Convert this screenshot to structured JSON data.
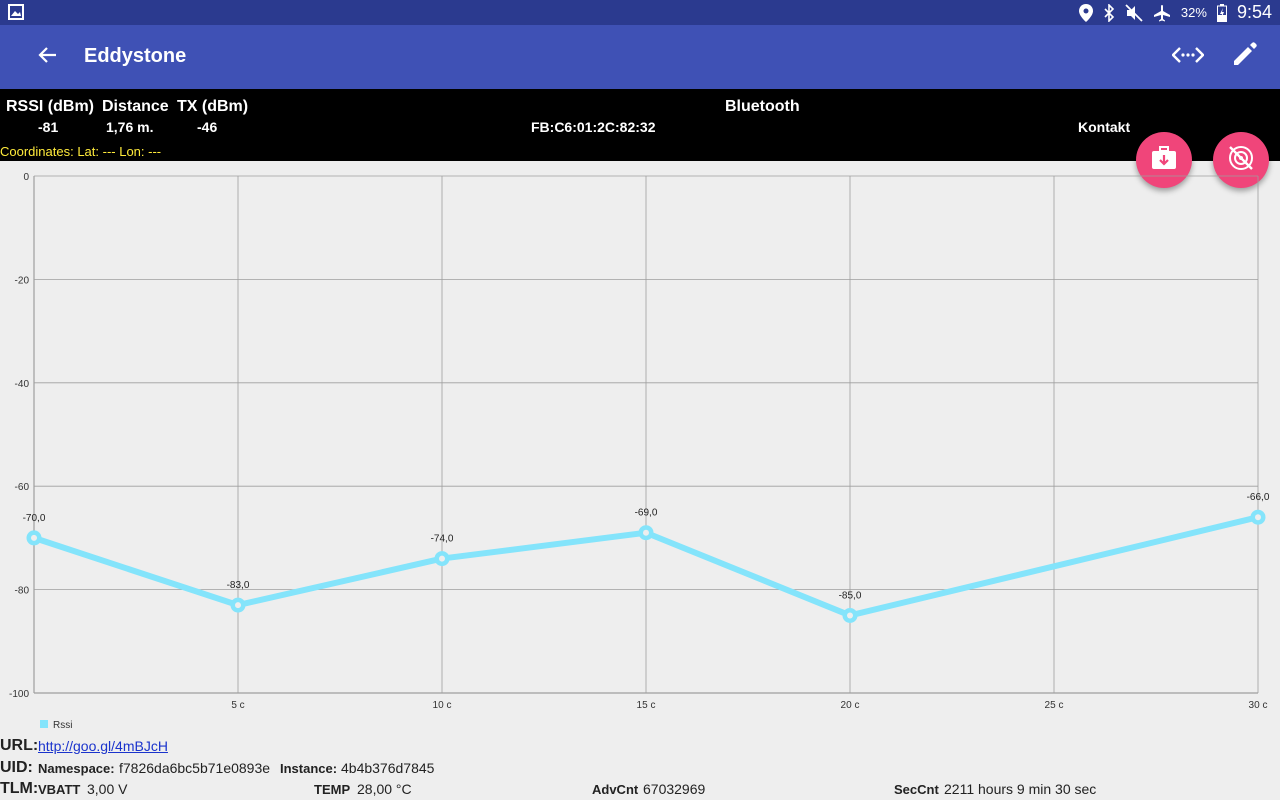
{
  "status_bar": {
    "battery": "32%",
    "time": "9:54",
    "icons": [
      "image-icon",
      "location-icon",
      "bluetooth-icon",
      "mute-icon",
      "airplane-icon",
      "battery-charging-icon"
    ]
  },
  "app_bar": {
    "title": "Eddystone",
    "icons": [
      "back-arrow-icon",
      "code-icon",
      "edit-pencil-icon"
    ]
  },
  "info": {
    "rssi_label": "RSSI (dBm)",
    "rssi_value": "-81",
    "distance_label": "Distance",
    "distance_value": "1,76 m.",
    "tx_label": "TX (dBm)",
    "tx_value": "-46",
    "bluetooth_label": "Bluetooth",
    "mac": "FB:C6:01:2C:82:32",
    "vendor": "Kontakt",
    "coordinates": "Coordinates: Lat: --- Lon: ---"
  },
  "fabs": {
    "save_icon": "briefcase-download-icon",
    "track_icon": "tracking-off-icon",
    "color": "#f0457a"
  },
  "chart_data": {
    "type": "line",
    "x": [
      0,
      5,
      10,
      15,
      20,
      30
    ],
    "x_tick_labels": [
      "5 c",
      "10 c",
      "15 c",
      "20 c",
      "25 c",
      "30 c"
    ],
    "x_ticks": [
      5,
      10,
      15,
      20,
      25,
      30
    ],
    "y_tick_labels": [
      "0",
      "-20",
      "-40",
      "-60",
      "-80",
      "-100"
    ],
    "y_ticks": [
      0,
      -20,
      -40,
      -60,
      -80,
      -100
    ],
    "xlim": [
      0,
      30
    ],
    "ylim": [
      -100,
      0
    ],
    "grid": true,
    "legend": "bottom-left",
    "series": [
      {
        "name": "Rssi",
        "values": [
          -70,
          -83,
          -74,
          -69,
          -85,
          -66
        ],
        "labels": [
          "-70,0",
          "-83,0",
          "-74,0",
          "-69,0",
          "-85,0",
          "-66,0"
        ],
        "color": "#84e4fb"
      }
    ]
  },
  "footer": {
    "url_label": "URL:",
    "url": "http://goo.gl/4mBJcH",
    "uid_label": "UID:",
    "namespace_label": "Namespace:",
    "namespace": "f7826da6bc5b71e0893e",
    "instance_label": "Instance:",
    "instance": "4b4b376d7845",
    "tlm_label": "TLM:",
    "vbatt_label": "VBATT",
    "vbatt": "3,00 V",
    "temp_label": "TEMP",
    "temp": "28,00 °C",
    "advcnt_label": "AdvCnt",
    "advcnt": "67032969",
    "seccnt_label": "SecCnt",
    "seccnt": "2211 hours 9 min 30 sec"
  }
}
